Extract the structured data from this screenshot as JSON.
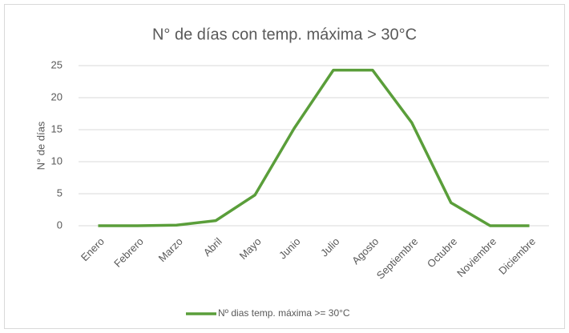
{
  "chart_data": {
    "type": "line",
    "title": "N° de días con temp. máxima > 30°C",
    "y_label": "N° de días",
    "categories": [
      "Enero",
      "Febrero",
      "Marzo",
      "Abril",
      "Mayo",
      "Junio",
      "Julio",
      "Agosto",
      "Septiembre",
      "Octubre",
      "Noviembre",
      "Diciembre"
    ],
    "series": [
      {
        "name": "Nº dias temp. máxima >= 30°C",
        "color": "#5a9e3a",
        "values": [
          0,
          0,
          0.1,
          0.8,
          4.8,
          15.2,
          24.3,
          24.3,
          16.1,
          3.6,
          0,
          0
        ]
      }
    ],
    "ylim": [
      0,
      25
    ],
    "yticks": [
      0,
      5,
      10,
      15,
      20,
      25
    ],
    "grid": true,
    "legend": "bottom"
  }
}
